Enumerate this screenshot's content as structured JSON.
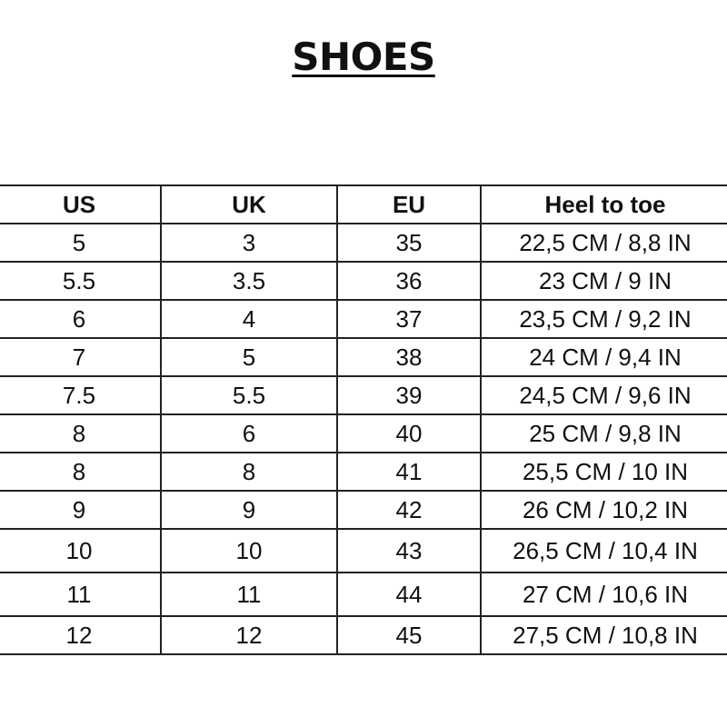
{
  "title": "SHOES",
  "table": {
    "headers": [
      "US",
      "UK",
      "EU",
      "Heel to toe"
    ],
    "rows": [
      [
        "5",
        "3",
        "35",
        "22,5 CM / 8,8 IN"
      ],
      [
        "5.5",
        "3.5",
        "36",
        "23 CM / 9 IN"
      ],
      [
        "6",
        "4",
        "37",
        "23,5 CM / 9,2 IN"
      ],
      [
        "7",
        "5",
        "38",
        "24 CM / 9,4 IN"
      ],
      [
        "7.5",
        "5.5",
        "39",
        "24,5 CM / 9,6 IN"
      ],
      [
        "8",
        "6",
        "40",
        "25 CM / 9,8 IN"
      ],
      [
        "8",
        "8",
        "41",
        "25,5 CM / 10 IN"
      ],
      [
        "9",
        "9",
        "42",
        "26 CM / 10,2 IN"
      ],
      [
        "10",
        "10",
        "43",
        "26,5 CM / 10,4 IN"
      ],
      [
        "11",
        "11",
        "44",
        "27 CM / 10,6 IN"
      ],
      [
        "12",
        "12",
        "45",
        "27,5 CM / 10,8 IN"
      ]
    ]
  }
}
